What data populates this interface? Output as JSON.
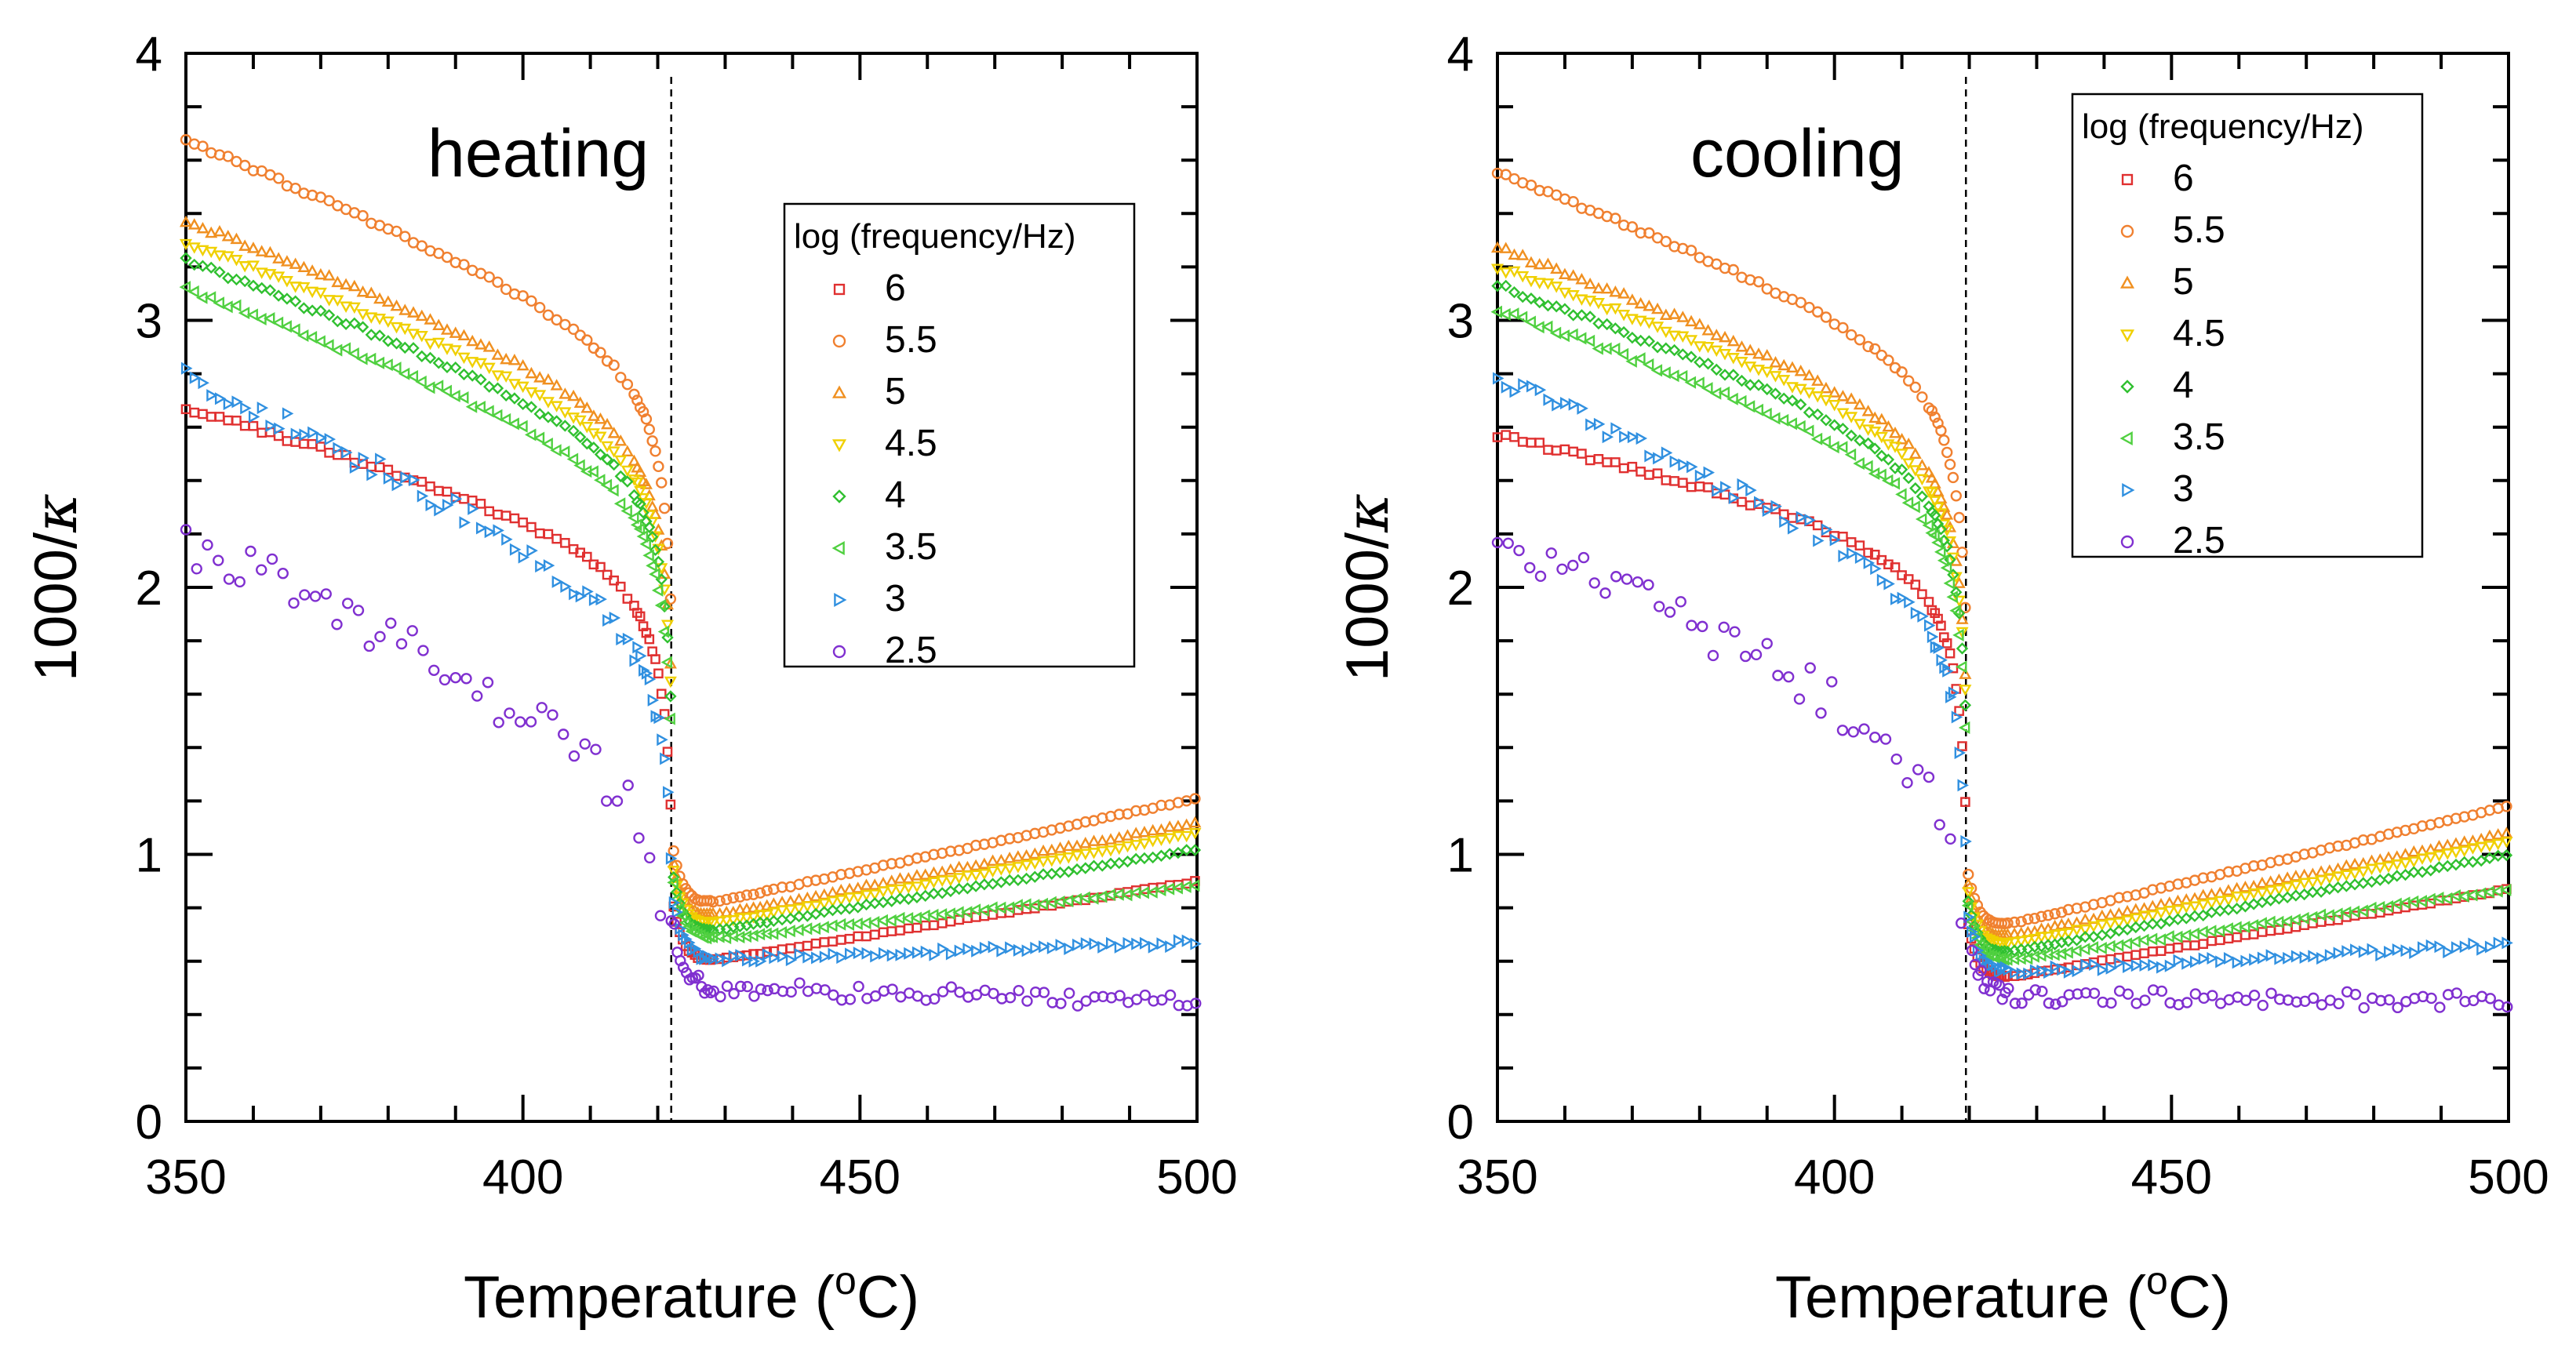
{
  "chart_data": [
    {
      "type": "scatter",
      "title": "",
      "annotation": "heating",
      "xlabel": "Temperature (°C)",
      "ylabel": "1000/κ",
      "xlabel_parts": [
        "Temperature (",
        "o",
        "C)"
      ],
      "ylabel_parts": [
        "1000/",
        "κ"
      ],
      "xlim": [
        350,
        500
      ],
      "ylim": [
        0,
        4
      ],
      "x_ticks": [
        350,
        400,
        450,
        500
      ],
      "y_ticks": [
        0,
        1,
        2,
        3,
        4
      ],
      "x_tick_labels": [
        "350",
        "400",
        "450",
        "500"
      ],
      "y_tick_labels": [
        "0",
        "1",
        "2",
        "3",
        "4"
      ],
      "transition_x": 422,
      "legend": {
        "title": "log (frequency/Hz)",
        "position": "right-middle"
      },
      "series": [
        {
          "name": "6",
          "color": "#e03030",
          "marker": "square",
          "start": 2.8,
          "drop": 0.0067,
          "a": 0.0385,
          "b": 0.0008,
          "min": 0.575,
          "hi": 0.9,
          "noise": 0.01
        },
        {
          "name": "5.5",
          "color": "#f08030",
          "marker": "circle",
          "start": 3.8,
          "drop": 0.0098,
          "a": 0.0385,
          "b": 0.0008,
          "min": 0.785,
          "hi": 1.21,
          "noise": 0.008
        },
        {
          "name": "5",
          "color": "#f09020",
          "marker": "triangle-up",
          "start": 3.5,
          "drop": 0.009,
          "a": 0.0385,
          "b": 0.0008,
          "min": 0.74,
          "hi": 1.12,
          "noise": 0.01
        },
        {
          "name": "4.5",
          "color": "#f0d000",
          "marker": "triangle-down",
          "start": 3.42,
          "drop": 0.0088,
          "a": 0.0385,
          "b": 0.0008,
          "min": 0.71,
          "hi": 1.08,
          "noise": 0.01
        },
        {
          "name": "4",
          "color": "#30c030",
          "marker": "diamond",
          "start": 3.35,
          "drop": 0.0086,
          "a": 0.0385,
          "b": 0.0008,
          "min": 0.685,
          "hi": 1.02,
          "noise": 0.01
        },
        {
          "name": "3.5",
          "color": "#50d040",
          "marker": "triangle-left",
          "start": 3.24,
          "drop": 0.0084,
          "a": 0.0385,
          "b": 0.0008,
          "min": 0.665,
          "hi": 0.88,
          "noise": 0.012
        },
        {
          "name": "3",
          "color": "#3090e0",
          "marker": "triangle-right",
          "start": 2.92,
          "drop": 0.011,
          "a": 0.0385,
          "b": 0.0004,
          "min": 0.6,
          "hi": 0.67,
          "noise": 0.04
        },
        {
          "name": "2.5",
          "color": "#8030d0",
          "marker": "circle",
          "start": 2.3,
          "drop": 0.011,
          "a": 0.0385,
          "b": 0.0003,
          "min": 0.5,
          "hi": 0.45,
          "noise": 0.09
        }
      ]
    },
    {
      "type": "scatter",
      "title": "",
      "annotation": "cooling",
      "xlabel": "Temperature (°C)",
      "ylabel": "1000/κ",
      "xlabel_parts": [
        "Temperature (",
        "o",
        "C)"
      ],
      "ylabel_parts": [
        "1000/",
        "κ"
      ],
      "xlim": [
        350,
        500
      ],
      "ylim": [
        0,
        4
      ],
      "x_ticks": [
        350,
        400,
        450,
        500
      ],
      "y_ticks": [
        0,
        1,
        2,
        3,
        4
      ],
      "x_tick_labels": [
        "350",
        "400",
        "450",
        "500"
      ],
      "y_tick_labels": [
        "0",
        "1",
        "2",
        "3",
        "4"
      ],
      "transition_x": 419.5,
      "legend": {
        "title": "log (frequency/Hz)",
        "position": "top-right"
      },
      "series": [
        {
          "name": "6",
          "color": "#e03030",
          "marker": "square",
          "start": 2.7,
          "drop": 0.0052,
          "a": 0.0385,
          "b": 0.0008,
          "min": 0.51,
          "hi": 0.87,
          "noise": 0.01
        },
        {
          "name": "5.5",
          "color": "#f08030",
          "marker": "circle",
          "start": 3.68,
          "drop": 0.009,
          "a": 0.0385,
          "b": 0.0008,
          "min": 0.7,
          "hi": 1.18,
          "noise": 0.008
        },
        {
          "name": "5",
          "color": "#f09020",
          "marker": "triangle-up",
          "start": 3.4,
          "drop": 0.0085,
          "a": 0.0385,
          "b": 0.0008,
          "min": 0.66,
          "hi": 1.08,
          "noise": 0.01
        },
        {
          "name": "4.5",
          "color": "#f0d000",
          "marker": "triangle-down",
          "start": 3.33,
          "drop": 0.0083,
          "a": 0.0385,
          "b": 0.0008,
          "min": 0.63,
          "hi": 1.05,
          "noise": 0.01
        },
        {
          "name": "4",
          "color": "#30c030",
          "marker": "diamond",
          "start": 3.26,
          "drop": 0.0082,
          "a": 0.0385,
          "b": 0.0008,
          "min": 0.6,
          "hi": 1.0,
          "noise": 0.01
        },
        {
          "name": "3.5",
          "color": "#50d040",
          "marker": "triangle-left",
          "start": 3.17,
          "drop": 0.008,
          "a": 0.0385,
          "b": 0.0008,
          "min": 0.58,
          "hi": 0.87,
          "noise": 0.012
        },
        {
          "name": "3",
          "color": "#3090e0",
          "marker": "triangle-right",
          "start": 2.9,
          "drop": 0.01,
          "a": 0.0385,
          "b": 0.0004,
          "min": 0.55,
          "hi": 0.66,
          "noise": 0.04
        },
        {
          "name": "2.5",
          "color": "#8030d0",
          "marker": "circle",
          "start": 2.3,
          "drop": 0.01,
          "a": 0.0385,
          "b": 0.0003,
          "min": 0.47,
          "hi": 0.45,
          "noise": 0.09
        }
      ]
    }
  ]
}
